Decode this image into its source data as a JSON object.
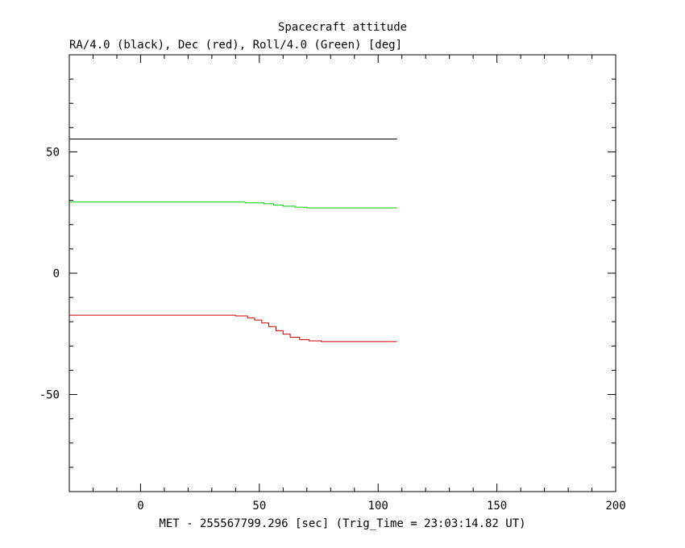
{
  "chart_data": {
    "type": "line",
    "title": "Spacecraft attitude",
    "subtitle": "RA/4.0 (black), Dec (red), Roll/4.0 (Green) [deg]",
    "xlabel": "MET - 255567799.296 [sec] (Trig_Time = 23:03:14.82 UT)",
    "ylabel": "",
    "xlim": [
      -30,
      200
    ],
    "ylim": [
      -90,
      90
    ],
    "xticks": [
      0,
      50,
      100,
      150,
      200
    ],
    "xtick_labels": [
      "0",
      "50",
      "100",
      "150",
      "200"
    ],
    "yticks": [
      50,
      0,
      -50
    ],
    "ytick_labels": [
      "50",
      "0",
      "-50"
    ],
    "grid": false,
    "series": [
      {
        "color": "#000000",
        "points": [
          [
            -30,
            55.3
          ],
          [
            108,
            55.3
          ]
        ]
      },
      {
        "color": "#00cc00",
        "points": [
          [
            -30,
            29.3
          ],
          [
            44,
            29.3
          ],
          [
            44,
            29.0
          ],
          [
            52,
            29.0
          ],
          [
            52,
            28.6
          ],
          [
            56,
            28.6
          ],
          [
            56,
            28.1
          ],
          [
            60,
            28.1
          ],
          [
            60,
            27.6
          ],
          [
            65,
            27.6
          ],
          [
            65,
            27.2
          ],
          [
            70,
            27.2
          ],
          [
            70,
            26.9
          ],
          [
            108,
            26.9
          ]
        ]
      },
      {
        "color": "#cc0000",
        "points": [
          [
            -30,
            -17.3
          ],
          [
            40,
            -17.3
          ],
          [
            40,
            -17.6
          ],
          [
            45,
            -17.6
          ],
          [
            45,
            -18.4
          ],
          [
            48,
            -18.4
          ],
          [
            48,
            -19.3
          ],
          [
            51,
            -19.3
          ],
          [
            51,
            -20.5
          ],
          [
            54,
            -20.5
          ],
          [
            54,
            -22.0
          ],
          [
            57,
            -22.0
          ],
          [
            57,
            -23.7
          ],
          [
            60,
            -23.7
          ],
          [
            60,
            -25.1
          ],
          [
            63,
            -25.1
          ],
          [
            63,
            -26.4
          ],
          [
            67,
            -26.4
          ],
          [
            67,
            -27.4
          ],
          [
            71,
            -27.4
          ],
          [
            71,
            -27.9
          ],
          [
            76,
            -27.9
          ],
          [
            76,
            -28.2
          ],
          [
            108,
            -28.2
          ]
        ]
      }
    ]
  }
}
